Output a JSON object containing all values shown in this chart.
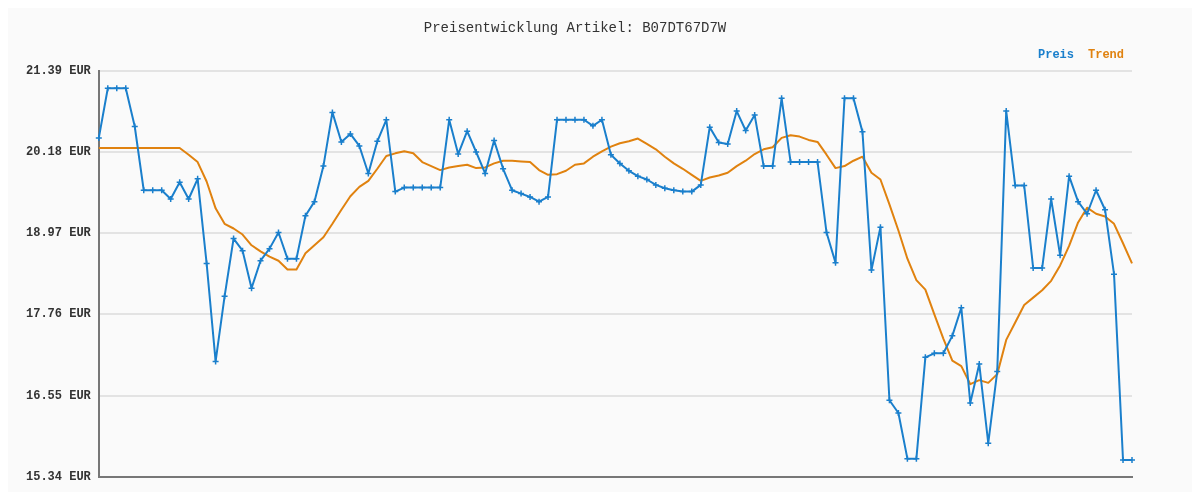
{
  "chart_data": {
    "type": "line",
    "title": "Preisentwicklung Artikel: B07DT67D7W",
    "categories": [
      null,
      null,
      null,
      null,
      null,
      null,
      null,
      null,
      null,
      null,
      null,
      null,
      null,
      null,
      null,
      null,
      null,
      null,
      null,
      null,
      null,
      null,
      null,
      null,
      null,
      null,
      null,
      null,
      null,
      null,
      null,
      null,
      null,
      null,
      null,
      null,
      null,
      null,
      null,
      null,
      null,
      null,
      null,
      null,
      null,
      null,
      null,
      null,
      null,
      null,
      null,
      null,
      null,
      null,
      null,
      null,
      null,
      null,
      null,
      null,
      null,
      null,
      null,
      null,
      null,
      null,
      null,
      null,
      null,
      null,
      null,
      null,
      null,
      null,
      null,
      null,
      null,
      null,
      null,
      null,
      null,
      null,
      null,
      null,
      null,
      null,
      null,
      null,
      null,
      null,
      null,
      null,
      null,
      null,
      null,
      null,
      null,
      null,
      null,
      null,
      null,
      null,
      null,
      null,
      null,
      null,
      null,
      null,
      null,
      null,
      null,
      null,
      null,
      null,
      null,
      null
    ],
    "series": [
      {
        "name": "Preis",
        "color": "#1a7fcc",
        "marker": "cross",
        "values": [
          20.39,
          21.13,
          21.13,
          21.13,
          20.56,
          19.61,
          19.61,
          19.61,
          19.48,
          19.73,
          19.48,
          19.78,
          18.52,
          17.06,
          18.03,
          18.89,
          18.71,
          18.15,
          18.56,
          18.74,
          18.98,
          18.59,
          18.59,
          19.23,
          19.44,
          19.97,
          20.77,
          20.33,
          20.45,
          20.27,
          19.86,
          20.34,
          20.66,
          19.59,
          19.65,
          19.65,
          19.65,
          19.65,
          19.65,
          20.66,
          20.15,
          20.49,
          20.18,
          19.86,
          20.35,
          19.93,
          19.61,
          19.56,
          19.51,
          19.44,
          19.51,
          20.66,
          20.66,
          20.66,
          20.66,
          20.57,
          20.66,
          20.14,
          20.01,
          19.9,
          19.82,
          19.77,
          19.69,
          19.64,
          19.61,
          19.59,
          19.59,
          19.69,
          20.55,
          20.32,
          20.3,
          20.79,
          20.5,
          20.73,
          19.97,
          19.97,
          20.98,
          20.03,
          20.03,
          20.03,
          20.03,
          18.98,
          18.53,
          20.98,
          20.98,
          20.48,
          18.42,
          19.06,
          16.48,
          16.29,
          15.61,
          15.61,
          17.12,
          17.18,
          17.18,
          17.44,
          17.86,
          16.44,
          17.02,
          15.84,
          16.91,
          20.79,
          19.68,
          19.68,
          18.45,
          18.45,
          19.48,
          18.64,
          19.82,
          19.44,
          19.26,
          19.61,
          19.32,
          18.36,
          15.59,
          15.59
        ]
      },
      {
        "name": "Trend",
        "color": "#e0820f",
        "marker": "none",
        "values": [
          20.24,
          20.24,
          20.24,
          20.24,
          20.24,
          20.24,
          20.24,
          20.24,
          20.24,
          20.24,
          20.14,
          20.03,
          19.74,
          19.34,
          19.11,
          19.04,
          18.95,
          18.79,
          18.7,
          18.62,
          18.56,
          18.43,
          18.43,
          18.67,
          18.79,
          18.91,
          19.11,
          19.32,
          19.52,
          19.66,
          19.75,
          19.93,
          20.12,
          20.16,
          20.19,
          20.16,
          20.03,
          19.97,
          19.91,
          19.95,
          19.97,
          19.99,
          19.94,
          19.95,
          20.01,
          20.05,
          20.05,
          20.04,
          20.03,
          19.91,
          19.84,
          19.85,
          19.9,
          19.99,
          20.01,
          20.11,
          20.19,
          20.26,
          20.31,
          20.34,
          20.38,
          20.3,
          20.22,
          20.11,
          20.01,
          19.93,
          19.84,
          19.75,
          19.8,
          19.83,
          19.87,
          19.97,
          20.05,
          20.15,
          20.22,
          20.25,
          20.39,
          20.43,
          20.41,
          20.36,
          20.33,
          20.14,
          19.94,
          19.97,
          20.05,
          20.11,
          19.87,
          19.77,
          19.4,
          19.01,
          18.59,
          18.27,
          18.13,
          17.76,
          17.4,
          17.07,
          16.99,
          16.72,
          16.78,
          16.74,
          16.87,
          17.38,
          17.64,
          17.9,
          18.01,
          18.12,
          18.26,
          18.49,
          18.78,
          19.13,
          19.35,
          19.26,
          19.22,
          19.11,
          18.82,
          18.52
        ]
      }
    ],
    "ylim": [
      15.34,
      21.39
    ],
    "yticks": [
      {
        "value": 15.34,
        "label": "15.34 EUR"
      },
      {
        "value": 16.55,
        "label": "16.55 EUR"
      },
      {
        "value": 17.76,
        "label": "17.76 EUR"
      },
      {
        "value": 18.97,
        "label": "18.97 EUR"
      },
      {
        "value": 20.18,
        "label": "20.18 EUR"
      },
      {
        "value": 21.39,
        "label": "21.39 EUR"
      }
    ],
    "grid": "y",
    "legend": "top right",
    "tick_labels": "y",
    "line_style": "solid"
  }
}
